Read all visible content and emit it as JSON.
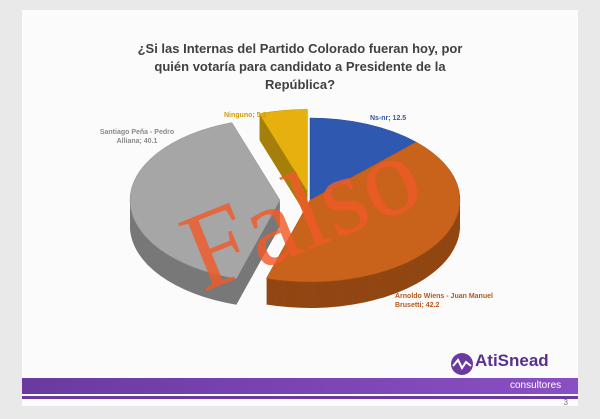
{
  "chart_data": {
    "type": "pie3d",
    "title": "¿Si las Internas del Partido Colorado fueran hoy, por quién votaría para candidato a Presidente de la República?",
    "values": [
      12.5,
      42.2,
      40.1,
      5.2
    ],
    "value_labels": [
      "Ns-nr; 12.5",
      "Arnoldo Wiens - Juan Manuel Brusetti; 42.2",
      "Santiago Peña - Pedro Alliana; 40.1",
      "Ninguno; 5.2"
    ],
    "colors": [
      "#2f58b0",
      "#c9621a",
      "#a6a6a6",
      "#e6b00e"
    ],
    "label_colors": [
      "#2f58b0",
      "#b8561a",
      "#8a8a8a",
      "#d39a00"
    ]
  },
  "stamp": "Falso",
  "logo": {
    "name": "AtiSnead",
    "subtitle": "consultores"
  },
  "page_number": "3"
}
